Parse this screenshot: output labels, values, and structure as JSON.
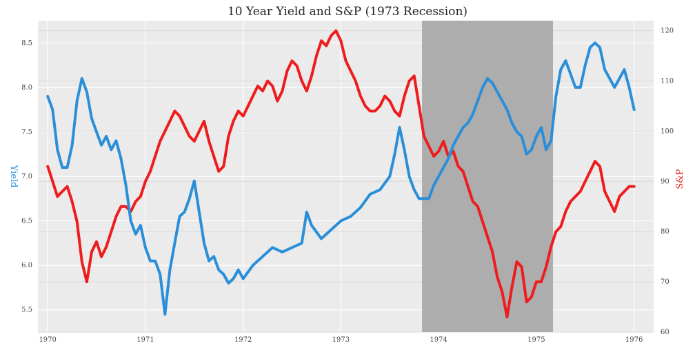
{
  "chart_data": {
    "type": "line",
    "title": "10 Year Yield and S&P (1973 Recession)",
    "ylabel_left": "Yield",
    "ylabel_right": "S&P",
    "xlim": [
      1969.9,
      1976.2
    ],
    "ylim_left": [
      5.25,
      8.75
    ],
    "ylim_right": [
      60,
      122
    ],
    "x_ticks": [
      "1970",
      "1971",
      "1972",
      "1973",
      "1974",
      "1975",
      "1976"
    ],
    "y_left_ticks": [
      "5.5",
      "6.0",
      "6.5",
      "7.0",
      "7.5",
      "8.0",
      "8.5"
    ],
    "y_right_ticks": [
      "60",
      "70",
      "80",
      "90",
      "100",
      "110",
      "120"
    ],
    "recession": [
      1973.83,
      1975.17
    ],
    "grid": true,
    "colors": {
      "yield": "#2a8fd8",
      "sp": "#ee1c1c",
      "recession": "#aaaaaa",
      "background": "#ebebeb"
    },
    "series": [
      {
        "axis": "left",
        "x": [
          1970.0,
          1970.05,
          1970.1,
          1970.15,
          1970.2,
          1970.25,
          1970.3,
          1970.35,
          1970.4,
          1970.45,
          1970.5,
          1970.55,
          1970.6,
          1970.65,
          1970.7,
          1970.75,
          1970.8,
          1970.85,
          1970.9,
          1970.95,
          1971.0,
          1971.05,
          1971.1,
          1971.15,
          1971.2,
          1971.25,
          1971.3,
          1971.35,
          1971.4,
          1971.45,
          1971.5,
          1971.55,
          1971.6,
          1971.65,
          1971.7,
          1971.75,
          1971.8,
          1971.85,
          1971.9,
          1971.95,
          1972.0,
          1972.1,
          1972.2,
          1972.3,
          1972.4,
          1972.5,
          1972.6,
          1972.65,
          1972.7,
          1972.8,
          1972.9,
          1973.0,
          1973.1,
          1973.2,
          1973.3,
          1973.4,
          1973.5,
          1973.55,
          1973.6,
          1973.65,
          1973.7,
          1973.75,
          1973.8,
          1973.85,
          1973.9,
          1973.95,
          1974.0,
          1974.05,
          1974.1,
          1974.15,
          1974.2,
          1974.25,
          1974.3,
          1974.35,
          1974.4,
          1974.45,
          1974.5,
          1974.55,
          1974.6,
          1974.65,
          1974.7,
          1974.75,
          1974.8,
          1974.85,
          1974.9,
          1974.95,
          1975.0,
          1975.05,
          1975.1,
          1975.15,
          1975.2,
          1975.25,
          1975.3,
          1975.35,
          1975.4,
          1975.45,
          1975.5,
          1975.55,
          1975.6,
          1975.65,
          1975.7,
          1975.75,
          1975.8,
          1975.85,
          1975.9,
          1975.95,
          1976.0
        ],
        "y": [
          7.9,
          7.75,
          7.3,
          7.1,
          7.1,
          7.35,
          7.85,
          8.1,
          7.95,
          7.65,
          7.5,
          7.35,
          7.45,
          7.3,
          7.4,
          7.2,
          6.9,
          6.5,
          6.35,
          6.45,
          6.2,
          6.05,
          6.05,
          5.9,
          5.45,
          5.95,
          6.25,
          6.55,
          6.6,
          6.75,
          6.95,
          6.6,
          6.25,
          6.05,
          6.1,
          5.95,
          5.9,
          5.8,
          5.85,
          5.95,
          5.85,
          6.0,
          6.1,
          6.2,
          6.15,
          6.2,
          6.25,
          6.6,
          6.45,
          6.3,
          6.4,
          6.5,
          6.55,
          6.65,
          6.8,
          6.85,
          7.0,
          7.25,
          7.55,
          7.3,
          7.0,
          6.85,
          6.75,
          6.75,
          6.75,
          6.9,
          7.0,
          7.1,
          7.2,
          7.35,
          7.45,
          7.55,
          7.6,
          7.7,
          7.85,
          8.0,
          8.1,
          8.05,
          7.95,
          7.85,
          7.75,
          7.6,
          7.5,
          7.45,
          7.25,
          7.3,
          7.45,
          7.55,
          7.3,
          7.4,
          7.9,
          8.2,
          8.3,
          8.15,
          8.0,
          8.0,
          8.25,
          8.45,
          8.5,
          8.45,
          8.2,
          8.1,
          8.0,
          8.1,
          8.2,
          8.0,
          7.75
        ]
      },
      {
        "axis": "right",
        "x": [
          1970.0,
          1970.05,
          1970.1,
          1970.15,
          1970.2,
          1970.25,
          1970.3,
          1970.35,
          1970.4,
          1970.45,
          1970.5,
          1970.55,
          1970.6,
          1970.65,
          1970.7,
          1970.75,
          1970.8,
          1970.85,
          1970.9,
          1970.95,
          1971.0,
          1971.05,
          1971.1,
          1971.15,
          1971.2,
          1971.25,
          1971.3,
          1971.35,
          1971.4,
          1971.45,
          1971.5,
          1971.55,
          1971.6,
          1971.65,
          1971.7,
          1971.75,
          1971.8,
          1971.85,
          1971.9,
          1971.95,
          1972.0,
          1972.05,
          1972.1,
          1972.15,
          1972.2,
          1972.25,
          1972.3,
          1972.35,
          1972.4,
          1972.45,
          1972.5,
          1972.55,
          1972.6,
          1972.65,
          1972.7,
          1972.75,
          1972.8,
          1972.85,
          1972.9,
          1972.95,
          1973.0,
          1973.05,
          1973.1,
          1973.15,
          1973.2,
          1973.25,
          1973.3,
          1973.35,
          1973.4,
          1973.45,
          1973.5,
          1973.55,
          1973.6,
          1973.65,
          1973.7,
          1973.75,
          1973.8,
          1973.85,
          1973.9,
          1973.95,
          1974.0,
          1974.05,
          1974.1,
          1974.15,
          1974.2,
          1974.25,
          1974.3,
          1974.35,
          1974.4,
          1974.45,
          1974.5,
          1974.55,
          1974.6,
          1974.65,
          1974.7,
          1974.75,
          1974.8,
          1974.85,
          1974.9,
          1974.95,
          1975.0,
          1975.05,
          1975.1,
          1975.15,
          1975.2,
          1975.25,
          1975.3,
          1975.35,
          1975.4,
          1975.45,
          1975.5,
          1975.55,
          1975.6,
          1975.65,
          1975.7,
          1975.75,
          1975.8,
          1975.85,
          1975.9,
          1975.95,
          1976.0
        ],
        "y": [
          93,
          90,
          87,
          88,
          89,
          86,
          82,
          74,
          70,
          76,
          78,
          75,
          77,
          80,
          83,
          85,
          85,
          84,
          86,
          87,
          90,
          92,
          95,
          98,
          100,
          102,
          104,
          103,
          101,
          99,
          98,
          100,
          102,
          98,
          95,
          92,
          93,
          99,
          102,
          104,
          103,
          105,
          107,
          109,
          108,
          110,
          109,
          106,
          108,
          112,
          114,
          113,
          110,
          108,
          111,
          115,
          118,
          117,
          119,
          120,
          118,
          114,
          112,
          110,
          107,
          105,
          104,
          104,
          105,
          107,
          106,
          104,
          103,
          107,
          110,
          111,
          105,
          99,
          97,
          95,
          96,
          98,
          95,
          96,
          93,
          92,
          89,
          86,
          85,
          82,
          79,
          76,
          71,
          68,
          63,
          69,
          74,
          73,
          66,
          67,
          70,
          70,
          73,
          77,
          80,
          81,
          84,
          86,
          87,
          88,
          90,
          92,
          94,
          93,
          88,
          86,
          84,
          87,
          88,
          89,
          89
        ]
      }
    ]
  }
}
